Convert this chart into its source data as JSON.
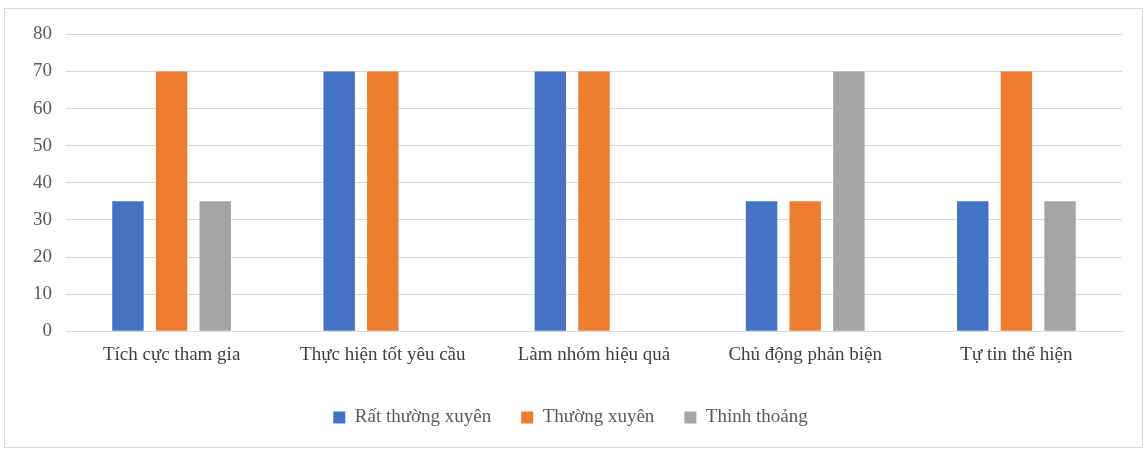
{
  "chart_data": {
    "type": "bar",
    "categories": [
      "Tích cực tham gia",
      "Thực hiện tốt yêu cầu",
      "Làm nhóm hiệu quả",
      "Chủ động phản biện",
      "Tự tin thể hiện"
    ],
    "series": [
      {
        "name": "Rất thường xuyên",
        "color": "#4472c4",
        "values": [
          35,
          70,
          70,
          35,
          35
        ]
      },
      {
        "name": "Thường xuyên",
        "color": "#ed7d31",
        "values": [
          70,
          70,
          70,
          35,
          70
        ]
      },
      {
        "name": "Thỉnh thoảng",
        "color": "#a5a5a5",
        "values": [
          35,
          0,
          0,
          70,
          35
        ]
      }
    ],
    "ylim": [
      0,
      80
    ],
    "yticks": [
      0,
      10,
      20,
      30,
      40,
      50,
      60,
      70,
      80
    ],
    "grid": "y",
    "legend": "bottom"
  }
}
